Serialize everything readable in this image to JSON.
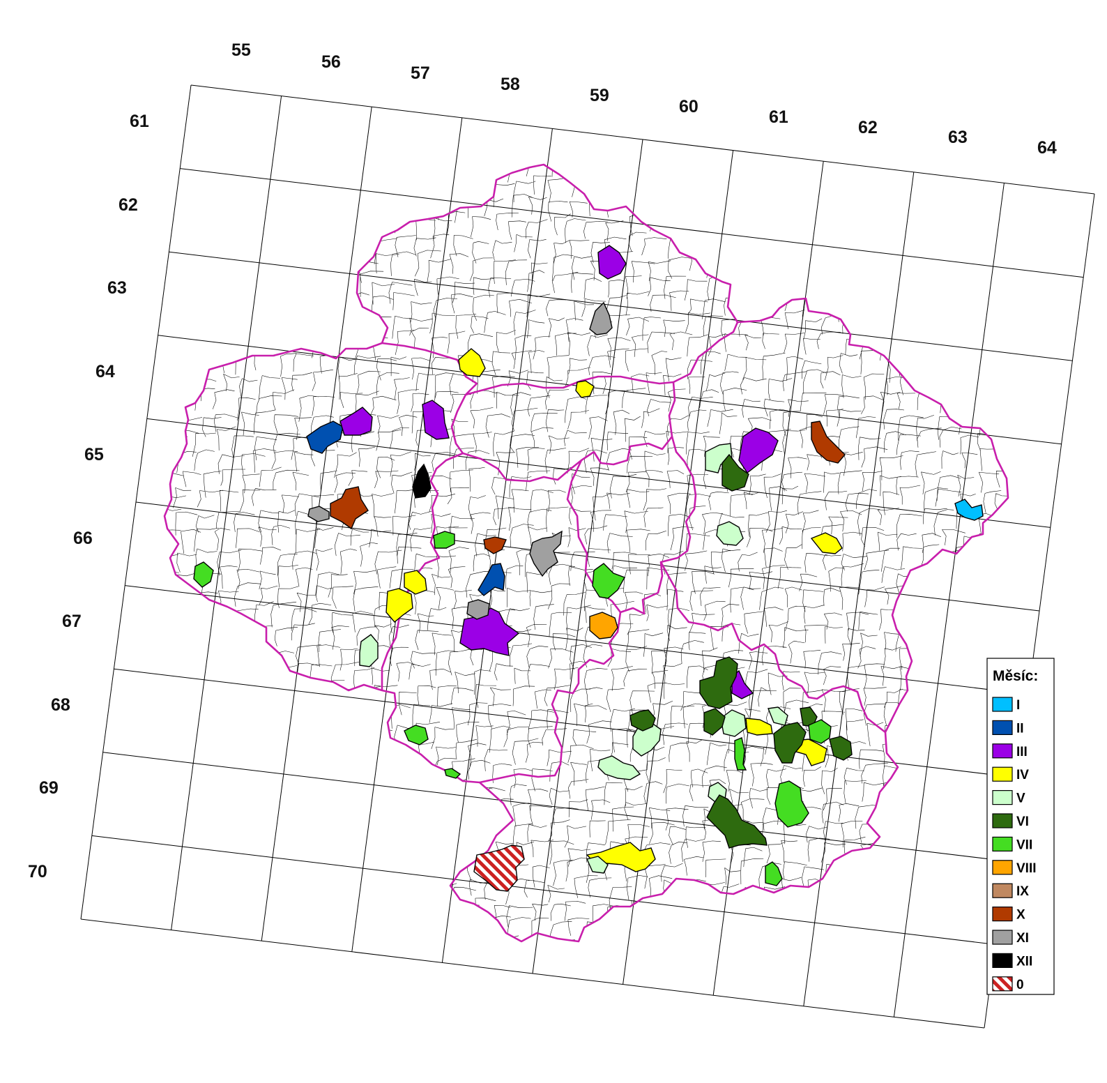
{
  "map": {
    "column_labels": [
      "55",
      "56",
      "57",
      "58",
      "59",
      "60",
      "61",
      "62",
      "63",
      "64"
    ],
    "row_labels": [
      "61",
      "62",
      "63",
      "64",
      "65",
      "66",
      "67",
      "68",
      "69",
      "70"
    ]
  },
  "legend": {
    "title": "Měsíc:",
    "items": [
      {
        "label": "I",
        "color": "#00bfff"
      },
      {
        "label": "II",
        "color": "#0050b0"
      },
      {
        "label": "III",
        "color": "#9b00e6"
      },
      {
        "label": "IV",
        "color": "#ffff00"
      },
      {
        "label": "V",
        "color": "#ccffcc"
      },
      {
        "label": "VI",
        "color": "#2e6b0f"
      },
      {
        "label": "VII",
        "color": "#44dd22"
      },
      {
        "label": "VIII",
        "color": "#ffa500"
      },
      {
        "label": "IX",
        "color": "#c08860"
      },
      {
        "label": "X",
        "color": "#b03a00"
      },
      {
        "label": "XI",
        "color": "#a0a0a0"
      },
      {
        "label": "XII",
        "color": "#000000"
      },
      {
        "label": "0",
        "color": "hatched-red"
      }
    ]
  },
  "colors": {
    "region_border": "#c81eac",
    "grid": "#000000",
    "hatch": "#cc2222"
  }
}
